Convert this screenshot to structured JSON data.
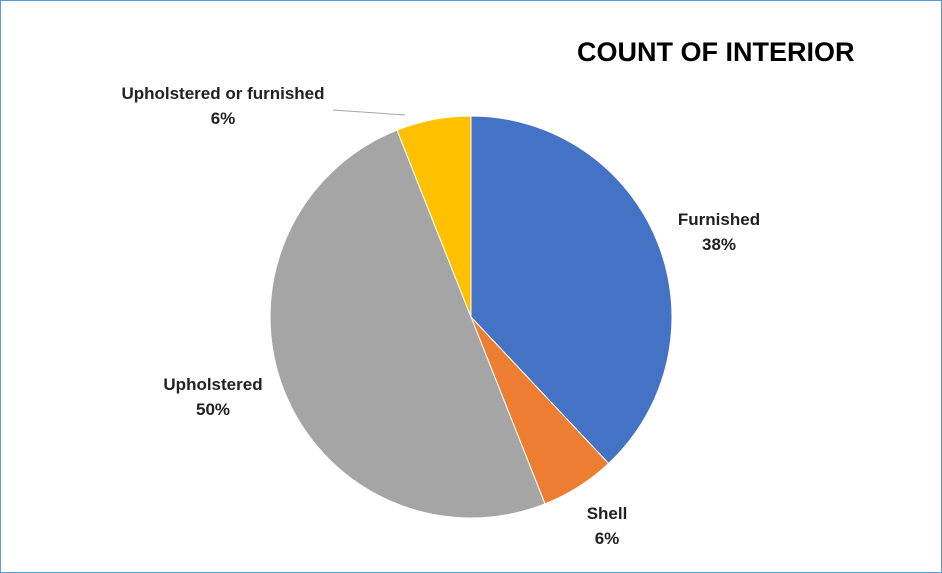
{
  "chart_data": {
    "type": "pie",
    "title": "COUNT OF INTERIOR",
    "categories": [
      "Furnished",
      "Shell",
      "Upholstered",
      "Upholstered or furnished"
    ],
    "values": [
      38,
      6,
      50,
      6
    ],
    "labels": [
      "38%",
      "6%",
      "50%",
      "6%"
    ],
    "colors": [
      "#4472c4",
      "#ed7d31",
      "#a5a5a5",
      "#ffc000"
    ],
    "legend": "none"
  }
}
